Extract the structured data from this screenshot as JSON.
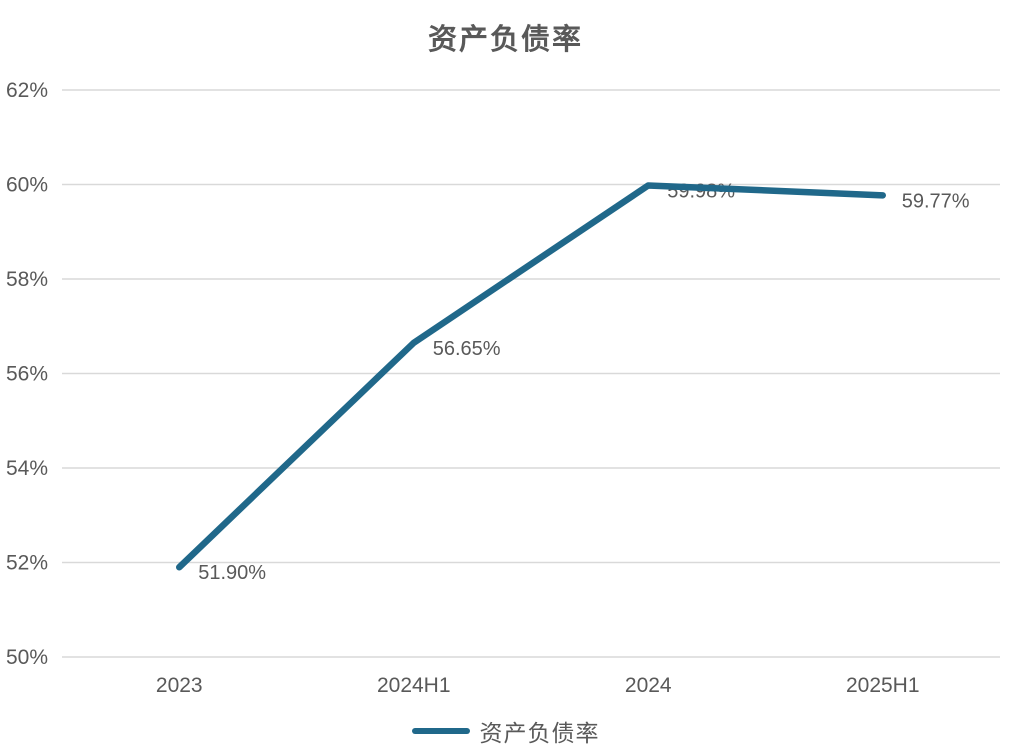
{
  "title": "资产负债率",
  "chart_data": {
    "type": "line",
    "title": "资产负债率",
    "categories": [
      "2023",
      "2024H1",
      "2024",
      "2025H1"
    ],
    "values": [
      51.9,
      56.65,
      59.98,
      59.77
    ],
    "point_labels": [
      "51.90%",
      "56.65%",
      "59.98%",
      "59.77%"
    ],
    "xlabel": "",
    "ylabel": "",
    "ylim": [
      50,
      62
    ],
    "ytick_step": 2,
    "ytick_labels": [
      "50%",
      "52%",
      "54%",
      "56%",
      "58%",
      "60%",
      "62%"
    ],
    "grid": true,
    "legend_position": "bottom",
    "legend_entries": [
      "资产负债率"
    ],
    "colors": {
      "line": "#20688A",
      "gridline": "#d9d9d9",
      "tick_text": "#595959",
      "label_text": "#595959",
      "title_text": "#595959"
    }
  }
}
